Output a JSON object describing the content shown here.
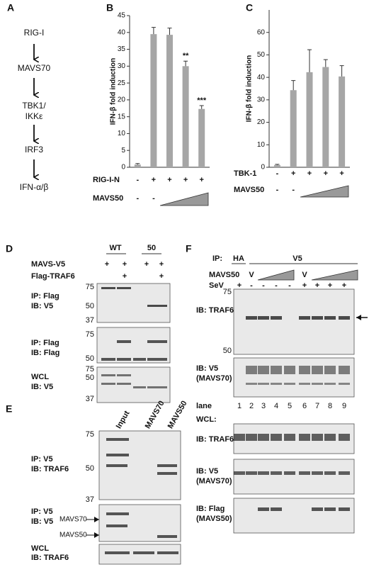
{
  "panel_a": {
    "label": "A",
    "steps": [
      "RIG-I",
      "MAVS70",
      "TBK1/",
      "IKKε",
      "IRF3",
      "IFN-α/β"
    ]
  },
  "chart_data": [
    {
      "type": "bar",
      "label": "B",
      "ylabel": "IFN-β fold induction",
      "values": [
        0.8,
        39.5,
        39.3,
        30,
        17.3
      ],
      "errors": [
        0.3,
        2,
        2,
        1.5,
        1
      ],
      "value_annotations": [
        null,
        null,
        null,
        "**",
        "***"
      ],
      "ylim": [
        0,
        45
      ],
      "yticks": [
        0,
        5,
        10,
        15,
        20,
        25,
        30,
        35,
        40,
        45
      ],
      "color": "#a6a6a6",
      "conditions": [
        {
          "name": "RIG-I-N",
          "values": [
            "-",
            "+",
            "+",
            "+",
            "+"
          ]
        },
        {
          "name": "MAVS50",
          "values": [
            "-",
            "-",
            null,
            null,
            null
          ]
        }
      ]
    },
    {
      "type": "bar",
      "label": "C",
      "ylabel": "IFN-β fold induction",
      "values": [
        1,
        34.3,
        42.3,
        44.6,
        40.4
      ],
      "errors": [
        0.3,
        4.3,
        10,
        3.3,
        4.8
      ],
      "value_annotations": [
        null,
        null,
        null,
        null,
        null
      ],
      "ylim": [
        0,
        70
      ],
      "yticks": [
        0,
        10,
        20,
        30,
        40,
        50,
        60
      ],
      "color": "#a6a6a6",
      "conditions": [
        {
          "name": "TBK-1",
          "values": [
            "-",
            "+",
            "+",
            "+",
            "+"
          ]
        },
        {
          "name": "MAVS50",
          "values": [
            "-",
            "-",
            null,
            null,
            null
          ]
        }
      ]
    }
  ],
  "panel_d": {
    "label": "D",
    "groups": [
      "WT",
      "50"
    ],
    "rows": [
      {
        "name": "MAVS-V5",
        "values": [
          "+",
          "+",
          "+",
          "+"
        ]
      },
      {
        "name": "Flag-TRAF6",
        "values": [
          null,
          "+",
          null,
          "+"
        ]
      }
    ],
    "blots": [
      {
        "lines": [
          "IP: Flag",
          "IB: V5"
        ],
        "markers": [
          75,
          50,
          37
        ]
      },
      {
        "lines": [
          "IP: Flag",
          "IB: Flag"
        ],
        "markers": [
          75,
          50
        ]
      },
      {
        "lines": [
          "WCL",
          "IB: V5"
        ],
        "markers": [
          75,
          50,
          37
        ]
      }
    ]
  },
  "panel_e": {
    "label": "E",
    "columns": [
      "Input",
      "MAVS70",
      "MAVS50"
    ],
    "blots": [
      {
        "lines": [
          "IP: V5",
          "IB: TRAF6"
        ],
        "markers": [
          75,
          50,
          37
        ]
      },
      {
        "lines": [
          "IP: V5",
          "IB: V5"
        ],
        "bands": [
          "MAVS70",
          "MAVS50"
        ]
      },
      {
        "lines": [
          "WCL",
          "IB: TRAF6"
        ]
      }
    ]
  },
  "panel_f": {
    "label": "F",
    "ip_label": "IP:",
    "ip_groups": [
      "HA",
      "V5"
    ],
    "rows": [
      {
        "name": "MAVS50",
        "values": [
          null,
          "V",
          null,
          null,
          null,
          "V",
          null,
          null,
          null
        ]
      },
      {
        "name": "SeV",
        "values": [
          "+",
          "-",
          "-",
          "-",
          "-",
          "+",
          "+",
          "+",
          "+"
        ]
      }
    ],
    "markers": [
      75,
      50
    ],
    "lane_label": "lane",
    "lanes": [
      1,
      2,
      3,
      4,
      5,
      6,
      7,
      8,
      9
    ],
    "wcl_label": "WCL:",
    "blots": [
      {
        "lines": [
          "IB: TRAF6"
        ]
      },
      {
        "lines": [
          "IB: V5",
          "(MAVS70)"
        ]
      },
      {
        "lines": [
          "IB: TRAF6"
        ]
      },
      {
        "lines": [
          "IB: V5",
          "(MAVS70)"
        ]
      },
      {
        "lines": [
          "IB: Flag",
          "(MAVS50)"
        ]
      }
    ]
  }
}
